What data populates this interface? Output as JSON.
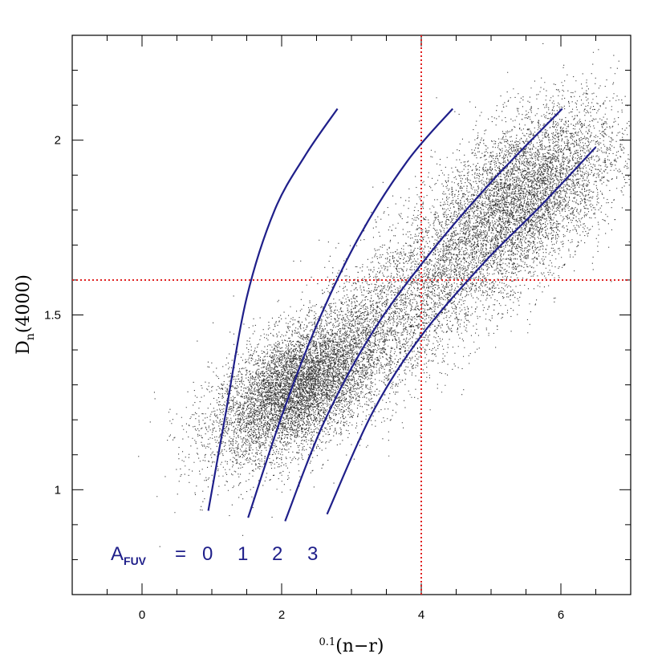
{
  "chart_data": {
    "type": "scatter",
    "title": "",
    "xlabel": {
      "prefix": "0.1",
      "text": "(n−r)"
    },
    "ylabel": {
      "base": "D",
      "sub": "n",
      "rest": "(4000)"
    },
    "xlim": [
      -1,
      7
    ],
    "ylim": [
      0.7,
      2.3
    ],
    "x_ticks": [
      {
        "value": 0,
        "label": "0"
      },
      {
        "value": 2,
        "label": "2"
      },
      {
        "value": 4,
        "label": "4"
      },
      {
        "value": 6,
        "label": "6"
      }
    ],
    "y_ticks": [
      {
        "value": 1,
        "label": "1"
      },
      {
        "value": 1.5,
        "label": "1.5"
      },
      {
        "value": 2,
        "label": "2"
      }
    ],
    "x_minor_step": 0.5,
    "y_minor_step": 0.1,
    "grid": false,
    "reference_lines": {
      "color": "#e02020",
      "style": "dotted",
      "x": 4,
      "y": 1.6
    },
    "point_color": "#111111",
    "curve_color": "#1f1f8a",
    "point_clusters": [
      {
        "cx": 2.2,
        "cy": 1.29,
        "sx": 0.6,
        "sy": 0.1,
        "rho": 0.55,
        "n": 11000
      },
      {
        "cx": 5.5,
        "cy": 1.85,
        "sx": 0.65,
        "sy": 0.13,
        "rho": 0.5,
        "n": 7000
      },
      {
        "cx": 3.9,
        "cy": 1.55,
        "sx": 1.1,
        "sy": 0.2,
        "rho": 0.8,
        "n": 5000
      }
    ],
    "series": [
      {
        "label": "0",
        "x": [
          0.95,
          1.2,
          1.5,
          1.9,
          2.35,
          2.8
        ],
        "y": [
          0.94,
          1.22,
          1.55,
          1.8,
          1.96,
          2.09
        ]
      },
      {
        "label": "1",
        "x": [
          1.52,
          2.0,
          2.5,
          3.1,
          3.8,
          4.45
        ],
        "y": [
          0.92,
          1.21,
          1.47,
          1.72,
          1.94,
          2.09
        ]
      },
      {
        "label": "2",
        "x": [
          2.05,
          2.6,
          3.3,
          4.1,
          5.0,
          6.02
        ],
        "y": [
          0.91,
          1.19,
          1.45,
          1.67,
          1.88,
          2.09
        ]
      },
      {
        "label": "3",
        "x": [
          2.65,
          3.3,
          4.0,
          4.9,
          5.7,
          6.5
        ],
        "y": [
          0.93,
          1.22,
          1.44,
          1.65,
          1.81,
          1.98
        ]
      }
    ],
    "legend": {
      "label_base": "A",
      "label_sub": "FUV",
      "equals": "=",
      "values": [
        "0",
        "1",
        "2",
        "3"
      ],
      "position": "bottom-left"
    }
  }
}
